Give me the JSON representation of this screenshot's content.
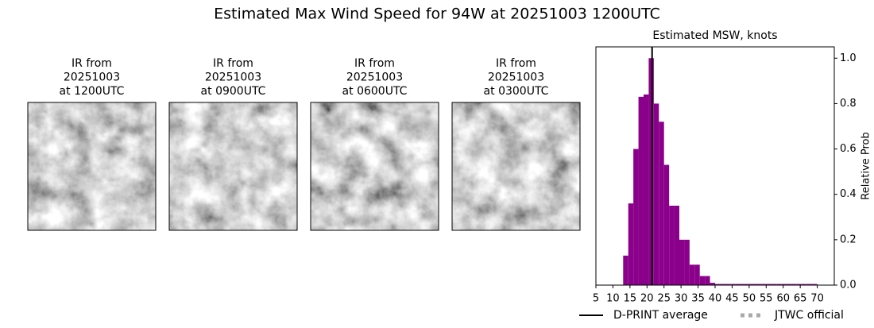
{
  "title": "Estimated Max Wind Speed for 94W at 20251003 1200UTC",
  "ir_panels": [
    {
      "lines": [
        "IR from",
        "20251003",
        "at 1200UTC"
      ]
    },
    {
      "lines": [
        "IR from",
        "20251003",
        "at 0900UTC"
      ]
    },
    {
      "lines": [
        "IR from",
        "20251003",
        "at 0600UTC"
      ]
    },
    {
      "lines": [
        "IR from",
        "20251003",
        "at 0300UTC"
      ]
    }
  ],
  "chart_data": {
    "type": "histogram",
    "title": "Estimated MSW, knots",
    "ylabel": "Relative Prob",
    "color": "#8b008b",
    "bins": [
      13,
      14.5,
      16,
      17.5,
      19,
      20.5,
      22,
      23.5,
      25,
      26.5,
      28,
      29.5,
      31,
      32.5,
      34,
      35.5,
      37,
      38.5,
      40,
      41.5,
      43,
      44.5,
      46,
      47.5,
      49,
      50.5,
      52,
      53.5,
      55,
      56.5,
      58,
      59.5,
      61,
      62.5,
      64,
      65.5,
      67,
      68.5,
      70
    ],
    "values": [
      0.13,
      0.36,
      0.6,
      0.83,
      0.84,
      1.0,
      0.8,
      0.72,
      0.53,
      0.35,
      0.35,
      0.2,
      0.2,
      0.09,
      0.09,
      0.04,
      0.04,
      0.01,
      0.005,
      0.005,
      0.005,
      0.005,
      0.005,
      0.005,
      0.005,
      0.005,
      0.005,
      0.005,
      0.005,
      0.005,
      0.005,
      0.005,
      0.005,
      0.005,
      0.005,
      0.005,
      0.005,
      0.005
    ],
    "average": 21.5,
    "average_label": "D-PRINT average",
    "average_color": "#000000",
    "official_label": "JTWC official",
    "official_color": "#aaaaaa",
    "xlim": [
      5,
      75
    ],
    "xticks": [
      5,
      10,
      15,
      20,
      25,
      30,
      35,
      40,
      45,
      50,
      55,
      60,
      65,
      70
    ],
    "ylim": [
      0,
      1.05
    ],
    "yticks": [
      {
        "value": 0,
        "label": "0.0"
      },
      0.2,
      0.4,
      0.6,
      0.8,
      {
        "value": 1,
        "label": "1.0"
      }
    ]
  }
}
